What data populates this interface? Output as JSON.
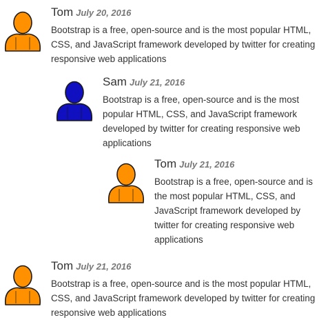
{
  "colors": {
    "avatar_orange": "#ff9000",
    "avatar_blue": "#1010c0",
    "outline": "#1a1a1a"
  },
  "comments": [
    {
      "author": "Tom",
      "date": "July 20, 2016",
      "text": "Bootstrap is a free, open-source and is the most popular HTML, CSS, and JavaScript framework developed by twitter for creating responsive web applications",
      "avatar_icon": "user-icon-orange"
    },
    {
      "author": "Sam",
      "date": "July 21, 2016",
      "text": "Bootstrap is a free, open-source and is the most popular HTML, CSS, and JavaScript framework developed by twitter for creating responsive web applications",
      "avatar_icon": "user-icon-blue"
    },
    {
      "author": "Tom",
      "date": "July 21, 2016",
      "text": "Bootstrap is a free, open-source and is the most popular HTML, CSS, and JavaScript framework developed by twitter for creating responsive web applications",
      "avatar_icon": "user-icon-orange"
    },
    {
      "author": "Tom",
      "date": "July 21, 2016",
      "text": "Bootstrap is a free, open-source and is the most popular HTML, CSS, and JavaScript framework developed by twitter for creating responsive web applications",
      "avatar_icon": "user-icon-orange"
    }
  ]
}
